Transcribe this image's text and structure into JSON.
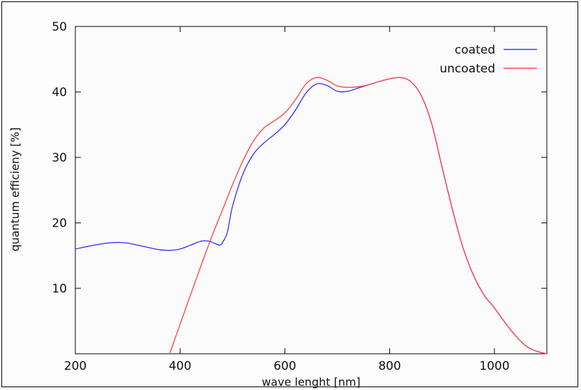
{
  "chart_data": {
    "type": "line",
    "xlabel": "wave lenght [nm]",
    "ylabel": "quantum efficieny [%]",
    "xlim": [
      200,
      1100
    ],
    "ylim": [
      0,
      50
    ],
    "xticks": [
      200,
      400,
      600,
      800,
      1000
    ],
    "yticks": [
      10,
      20,
      30,
      40,
      50
    ],
    "grid": false,
    "legend_position": "top-right",
    "series": [
      {
        "name": "coated",
        "color": "#3a3aff",
        "x": [
          200,
          230,
          260,
          280,
          300,
          330,
          360,
          380,
          400,
          420,
          440,
          455,
          465,
          475,
          480,
          490,
          500,
          520,
          540,
          560,
          580,
          600,
          620,
          640,
          660,
          680,
          700,
          720,
          740,
          760,
          780,
          800,
          820,
          840,
          860,
          880,
          900,
          920,
          940,
          960,
          980,
          1000,
          1020,
          1040,
          1060,
          1080,
          1100
        ],
        "y": [
          16,
          16.5,
          16.9,
          17,
          16.9,
          16.4,
          15.9,
          15.8,
          16,
          16.6,
          17.2,
          17.2,
          16.9,
          16.6,
          16.9,
          18.5,
          22.5,
          27.5,
          30.5,
          32.2,
          33.5,
          35,
          37.2,
          39.8,
          41.2,
          41,
          40.1,
          40.1,
          40.6,
          41.1,
          41.6,
          42,
          42.2,
          41.6,
          39.5,
          35.2,
          28.5,
          22,
          16.2,
          12,
          9,
          7,
          4.8,
          2.8,
          1.2,
          0.4,
          0
        ]
      },
      {
        "name": "uncoated",
        "color": "#ff4a4a",
        "x": [
          380,
          400,
          420,
          440,
          460,
          480,
          500,
          520,
          540,
          560,
          580,
          600,
          620,
          640,
          660,
          680,
          700,
          720,
          740,
          760,
          780,
          800,
          820,
          840,
          860,
          880,
          900,
          920,
          940,
          960,
          980,
          1000,
          1020,
          1040,
          1060,
          1080,
          1100
        ],
        "y": [
          0,
          4.5,
          9,
          13.5,
          17.8,
          21.8,
          25.8,
          29.5,
          32.5,
          34.5,
          35.6,
          36.8,
          38.8,
          41.2,
          42.2,
          41.8,
          40.9,
          40.7,
          40.8,
          41.1,
          41.6,
          42,
          42.2,
          41.6,
          39.5,
          35.2,
          28.5,
          22,
          16.2,
          12,
          9,
          7,
          4.8,
          2.8,
          1.2,
          0.4,
          0
        ]
      }
    ]
  }
}
